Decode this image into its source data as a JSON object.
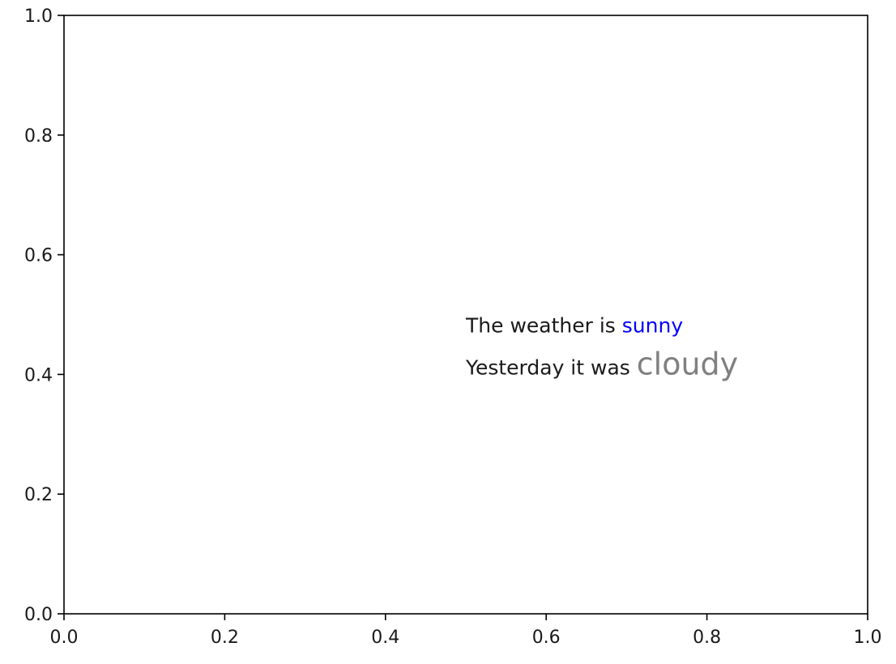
{
  "chart_data": {
    "type": "scatter",
    "title": "",
    "xlabel": "",
    "ylabel": "",
    "xlim": [
      0.0,
      1.0
    ],
    "ylim": [
      0.0,
      1.0
    ],
    "grid": false,
    "x_ticks": [
      "0.0",
      "0.2",
      "0.4",
      "0.6",
      "0.8",
      "1.0"
    ],
    "y_ticks": [
      "0.0",
      "0.2",
      "0.4",
      "0.6",
      "0.8",
      "1.0"
    ],
    "series": [],
    "annotations": [
      {
        "x": 0.5,
        "y": 0.47,
        "parts": [
          {
            "text": "The weather is ",
            "color": "#1a1a1a",
            "size": "normal"
          },
          {
            "text": "sunny",
            "color": "#0000ff",
            "size": "normal"
          }
        ]
      },
      {
        "x": 0.5,
        "y": 0.4,
        "parts": [
          {
            "text": "Yesterday it was ",
            "color": "#1a1a1a",
            "size": "normal"
          },
          {
            "text": "cloudy",
            "color": "#808080",
            "size": "large"
          }
        ]
      }
    ]
  }
}
